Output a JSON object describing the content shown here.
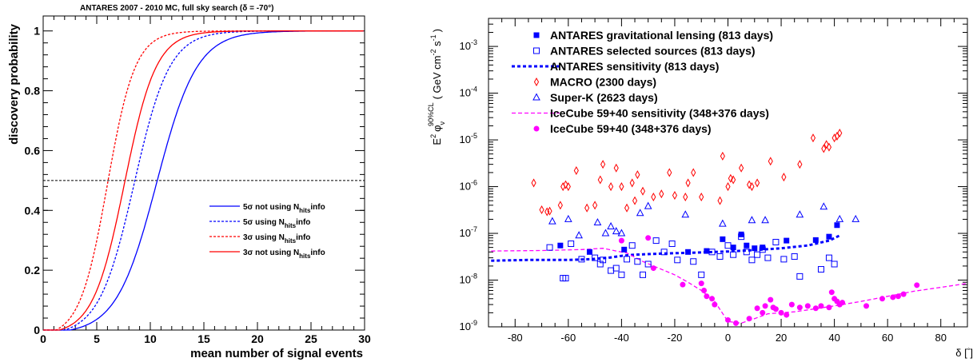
{
  "chart_data": [
    {
      "type": "line",
      "title": "ANTARES 2007 - 2010 MC, full sky search (δ = -70°)",
      "xlabel": "mean number of signal events",
      "ylabel": "discovery probability",
      "xlim": [
        0,
        30
      ],
      "ylim": [
        0,
        1.05
      ],
      "x_ticks": [
        0,
        5,
        10,
        15,
        20,
        25,
        30
      ],
      "x_tick_labels": [
        "0",
        "5",
        "10",
        "15",
        "20",
        "25",
        "30"
      ],
      "y_ticks": [
        0,
        0.2,
        0.4,
        0.6,
        0.8,
        1
      ],
      "y_tick_labels": [
        "0",
        "0.2",
        "0.4",
        "0.6",
        "0.8",
        "1"
      ],
      "reference_line": {
        "y": 0.5,
        "style": "dotted",
        "color": "#000000"
      },
      "legend_placement": "center-right",
      "series": [
        {
          "name": "5σ not using N_hits info",
          "legend": [
            "5σ not using N",
            "hits",
            "info"
          ],
          "color": "#0000ff",
          "dash": "solid",
          "x50": 10.6,
          "width": 3.2,
          "shift": 2.5
        },
        {
          "name": "5σ using N_hits info",
          "legend": [
            "5σ using N",
            "hits",
            "info"
          ],
          "color": "#0000ff",
          "dash": "dashed",
          "x50": 8.5,
          "width": 2.8,
          "shift": 2.0
        },
        {
          "name": "3σ using N_hits info",
          "legend": [
            "3σ using N",
            "hits",
            "info"
          ],
          "color": "#ff0000",
          "dash": "dashed",
          "x50": 6.0,
          "width": 2.2,
          "shift": 1.2
        },
        {
          "name": "3σ not using N_hits info",
          "legend": [
            "3σ not using N",
            "hits",
            "info"
          ],
          "color": "#ff0000",
          "dash": "solid",
          "x50": 7.6,
          "width": 2.5,
          "shift": 1.5
        }
      ]
    },
    {
      "type": "scatter",
      "xlabel": "δ [°]",
      "ylabel": "E² φν 90%CL ( GeV cm⁻² s⁻¹ )",
      "ylabel_parts": {
        "e": "E",
        "e_exp": "2",
        "phi": "φ",
        "phi_sub": "ν",
        "phi_sup": "90%CL",
        "units": "( GeV cm",
        "cm_exp": "-2",
        "s": " s",
        "s_exp": "-1",
        "close": ")"
      },
      "xlabel_parts": {
        "delta": "δ [",
        "deg": "°",
        "close": "]"
      },
      "xlim": [
        -90,
        90
      ],
      "ylim_log10": [
        -9,
        -2.4
      ],
      "log_y": true,
      "x_ticks": [
        -80,
        -60,
        -40,
        -20,
        0,
        20,
        40,
        60,
        80
      ],
      "x_tick_labels": [
        "-80",
        "-60",
        "-40",
        "-20",
        "0",
        "20",
        "40",
        "60",
        "80"
      ],
      "y_ticks_log10": [
        -9,
        -8,
        -7,
        -6,
        -5,
        -4,
        -3
      ],
      "y_tick_base": "10",
      "y_tick_exps": [
        "-9",
        "-8",
        "-7",
        "-6",
        "-5",
        "-4",
        "-3"
      ],
      "legend_placement": "top-left",
      "series": [
        {
          "name": "ANTARES gravitational lensing (813 days)",
          "marker": "filled-square",
          "color": "#0000ff",
          "points": [
            [
              -63,
              5.5e-08
            ],
            [
              -52,
              4e-08
            ],
            [
              -39,
              4.5e-08
            ],
            [
              -15,
              4e-08
            ],
            [
              -8,
              4.2e-08
            ],
            [
              -2,
              7.5e-08
            ],
            [
              2,
              5e-08
            ],
            [
              5,
              9.5e-08
            ],
            [
              7,
              5.5e-08
            ],
            [
              10,
              4.8e-08
            ],
            [
              13,
              5e-08
            ],
            [
              22,
              7e-08
            ],
            [
              33,
              7.2e-08
            ],
            [
              38,
              8.5e-08
            ],
            [
              41,
              1.5e-07
            ]
          ]
        },
        {
          "name": "ANTARES selected sources (813 days)",
          "marker": "open-square",
          "color": "#0000ff",
          "points": [
            [
              -67,
              5e-08
            ],
            [
              -62,
              1.1e-08
            ],
            [
              -61,
              1.1e-08
            ],
            [
              -59,
              6e-08
            ],
            [
              -55,
              2.8e-08
            ],
            [
              -50,
              3e-08
            ],
            [
              -48,
              2.2e-08
            ],
            [
              -47,
              2.7e-08
            ],
            [
              -44,
              1.6e-08
            ],
            [
              -42,
              1.8e-08
            ],
            [
              -40,
              1.3e-08
            ],
            [
              -38,
              2.8e-08
            ],
            [
              -36,
              5.5e-08
            ],
            [
              -34,
              2.5e-08
            ],
            [
              -32,
              1.3e-08
            ],
            [
              -30,
              2.2e-08
            ],
            [
              -27,
              7e-08
            ],
            [
              -24,
              4e-08
            ],
            [
              -21,
              6e-08
            ],
            [
              -19,
              2.7e-08
            ],
            [
              -13,
              2.5e-08
            ],
            [
              -10,
              1.3e-08
            ],
            [
              -6,
              4e-08
            ],
            [
              -3,
              3.2e-08
            ],
            [
              0,
              5.5e-08
            ],
            [
              2,
              3.5e-08
            ],
            [
              5,
              8.5e-08
            ],
            [
              7,
              4e-08
            ],
            [
              9,
              2.7e-08
            ],
            [
              11,
              3.5e-08
            ],
            [
              13,
              4.5e-08
            ],
            [
              15,
              3e-08
            ],
            [
              18,
              6.5e-08
            ],
            [
              21,
              2.8e-08
            ],
            [
              25,
              3.2e-08
            ],
            [
              27,
              1.2e-08
            ],
            [
              35,
              1.7e-08
            ],
            [
              38,
              3e-08
            ],
            [
              40,
              2.2e-08
            ]
          ]
        },
        {
          "name": "ANTARES sensitivity (813 days)",
          "line": "dotted-thick",
          "color": "#0000ff",
          "points": [
            [
              -89,
              2.6e-08
            ],
            [
              -75,
              2.7e-08
            ],
            [
              -60,
              2.7e-08
            ],
            [
              -52,
              2.8e-08
            ],
            [
              -45,
              3e-08
            ],
            [
              -40,
              3.3e-08
            ],
            [
              -35,
              3.5e-08
            ],
            [
              -25,
              3.7e-08
            ],
            [
              -10,
              3.9e-08
            ],
            [
              0,
              4.1e-08
            ],
            [
              10,
              4.4e-08
            ],
            [
              20,
              4.8e-08
            ],
            [
              30,
              5.5e-08
            ],
            [
              38,
              7e-08
            ],
            [
              42,
              9e-08
            ]
          ]
        },
        {
          "name": "MACRO (2300 days)",
          "marker": "open-diamond",
          "color": "#ff0000",
          "points": [
            [
              -73,
              1.2e-06
            ],
            [
              -70,
              3.2e-07
            ],
            [
              -68,
              2.9e-07
            ],
            [
              -67,
              3e-07
            ],
            [
              -63,
              4e-07
            ],
            [
              -62,
              1e-06
            ],
            [
              -61,
              1.1e-06
            ],
            [
              -60,
              1e-06
            ],
            [
              -57,
              2.2e-06
            ],
            [
              -53,
              3.5e-07
            ],
            [
              -50,
              4e-07
            ],
            [
              -48,
              1.4e-06
            ],
            [
              -47,
              3e-06
            ],
            [
              -44,
              1e-06
            ],
            [
              -42,
              2.5e-06
            ],
            [
              -40,
              1e-06
            ],
            [
              -38,
              3.5e-07
            ],
            [
              -36,
              1.2e-06
            ],
            [
              -35,
              5e-07
            ],
            [
              -34,
              1.8e-06
            ],
            [
              -32,
              8e-07
            ],
            [
              -28,
              6e-07
            ],
            [
              -25,
              7e-07
            ],
            [
              -22,
              2e-06
            ],
            [
              -20,
              6.5e-07
            ],
            [
              -16,
              6e-07
            ],
            [
              -15,
              1.2e-06
            ],
            [
              -13,
              2e-06
            ],
            [
              -10,
              6e-07
            ],
            [
              -3,
              5e-07
            ],
            [
              -2,
              4.5e-06
            ],
            [
              0,
              1e-06
            ],
            [
              1,
              1.5e-06
            ],
            [
              2,
              1.4e-06
            ],
            [
              5,
              2.5e-06
            ],
            [
              8,
              1.1e-06
            ],
            [
              9,
              1e-06
            ],
            [
              11,
              1.2e-06
            ],
            [
              16,
              3.5e-06
            ],
            [
              21,
              1.6e-06
            ],
            [
              27,
              3e-06
            ],
            [
              32,
              1.1e-05
            ],
            [
              36,
              6.5e-06
            ],
            [
              37,
              8e-06
            ],
            [
              38,
              7e-06
            ],
            [
              40,
              1.1e-05
            ],
            [
              41,
              1.2e-05
            ],
            [
              42,
              1.4e-05
            ]
          ]
        },
        {
          "name": "Super-K (2623 days)",
          "marker": "open-triangle",
          "color": "#0000ff",
          "points": [
            [
              -66,
              1.8e-07
            ],
            [
              -60,
              2e-07
            ],
            [
              -56,
              9e-08
            ],
            [
              -49,
              1.7e-07
            ],
            [
              -46,
              1e-07
            ],
            [
              -44,
              1.4e-07
            ],
            [
              -42,
              1.1e-07
            ],
            [
              -40,
              1e-07
            ],
            [
              -33,
              2.7e-07
            ],
            [
              -30,
              3.8e-07
            ],
            [
              -16,
              2.5e-07
            ],
            [
              -2,
              1.6e-07
            ],
            [
              9,
              1.9e-07
            ],
            [
              14,
              1.9e-07
            ],
            [
              27,
              2.5e-07
            ],
            [
              36,
              3.7e-07
            ],
            [
              42,
              2e-07
            ],
            [
              48,
              2e-07
            ]
          ]
        },
        {
          "name": "IceCube 59+40 sensitivity (348+376 days)",
          "line": "dashed",
          "color": "#ff00ff",
          "points": [
            [
              -89,
              4.2e-08
            ],
            [
              -70,
              4.3e-08
            ],
            [
              -55,
              4.5e-08
            ],
            [
              -47,
              4.8e-08
            ],
            [
              -42,
              4.2e-08
            ],
            [
              -38,
              3.8e-08
            ],
            [
              -32,
              2.5e-08
            ],
            [
              -27,
              1.9e-08
            ],
            [
              -20,
              1.3e-08
            ],
            [
              -15,
              9e-09
            ],
            [
              -10,
              6e-09
            ],
            [
              -5,
              3.5e-09
            ],
            [
              0,
              1.3e-09
            ],
            [
              5,
              1.2e-09
            ],
            [
              10,
              1.5e-09
            ],
            [
              15,
              1.9e-09
            ],
            [
              20,
              2e-09
            ],
            [
              25,
              2.1e-09
            ],
            [
              30,
              2.3e-09
            ],
            [
              40,
              2.8e-09
            ],
            [
              50,
              3.5e-09
            ],
            [
              60,
              4.5e-09
            ],
            [
              70,
              5.8e-09
            ],
            [
              80,
              7e-09
            ],
            [
              90,
              8.5e-09
            ]
          ]
        },
        {
          "name": "IceCube 59+40 (348+376 days)",
          "marker": "filled-circle",
          "color": "#ff00ff",
          "points": [
            [
              -40,
              7e-08
            ],
            [
              -30,
              8e-08
            ],
            [
              -28,
              1.8e-08
            ],
            [
              -17,
              8e-09
            ],
            [
              -10,
              8.5e-09
            ],
            [
              -9,
              6e-09
            ],
            [
              -8,
              4.5e-09
            ],
            [
              -6,
              4e-09
            ],
            [
              -5,
              3e-09
            ],
            [
              0,
              1.4e-09
            ],
            [
              3,
              1.2e-09
            ],
            [
              8,
              1.5e-09
            ],
            [
              11,
              2.5e-09
            ],
            [
              13,
              2e-09
            ],
            [
              14,
              2.8e-09
            ],
            [
              16,
              3.8e-09
            ],
            [
              17,
              2.6e-09
            ],
            [
              18,
              2.4e-09
            ],
            [
              20,
              2e-09
            ],
            [
              22,
              1.8e-09
            ],
            [
              24,
              3e-09
            ],
            [
              27,
              2.6e-09
            ],
            [
              30,
              2.8e-09
            ],
            [
              33,
              2.5e-09
            ],
            [
              35,
              2.8e-09
            ],
            [
              38,
              2.6e-09
            ],
            [
              39,
              5.5e-09
            ],
            [
              40,
              4e-09
            ],
            [
              41,
              3.5e-09
            ],
            [
              42,
              3e-09
            ],
            [
              43,
              3.3e-09
            ],
            [
              52,
              2.8e-09
            ],
            [
              58,
              4e-09
            ],
            [
              62,
              4.3e-09
            ],
            [
              64,
              4.5e-09
            ],
            [
              66,
              5e-09
            ],
            [
              71,
              7.8e-09
            ]
          ]
        }
      ]
    }
  ]
}
